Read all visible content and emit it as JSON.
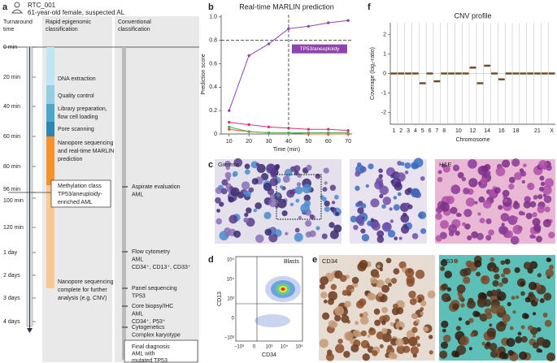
{
  "panel_a": {
    "label": "a",
    "patient_id": "RTC_001",
    "patient_info": "61-year-old female, suspected AL",
    "col_time": [
      "Turnaround",
      "time"
    ],
    "col_rapid": [
      "Rapid epigenomic",
      "classification"
    ],
    "col_conv": [
      "Conventional",
      "classification"
    ],
    "time_labels": [
      "0 min",
      "20 min",
      "40 min",
      "60 min",
      "80 min",
      "96 min",
      "100 min",
      "120 min",
      "1 day",
      "2 days",
      "3 days",
      "4 days"
    ],
    "rapid_steps": [
      [
        "DNA extraction"
      ],
      [
        "Quality control"
      ],
      [
        "Library preparation,",
        "flow cell loading"
      ],
      [
        "Pore scanning"
      ],
      [
        "Nanopore sequencing",
        "and real-time MARLIN",
        "prediction"
      ],
      [
        "Methylation class",
        "TP53/aneuploidy-",
        "enriched AML"
      ],
      [
        "Nanopore sequencing",
        "complete for further",
        "analysis (e.g. CNV)"
      ]
    ],
    "conventional_steps": [
      [
        "Aspirate evaluation",
        "AML"
      ],
      [
        "Flow cytometry",
        "AML",
        "CD34⁺, CD13⁺, CD33⁺"
      ],
      [
        "Panel sequencing",
        "TP53"
      ],
      [
        "Core biopsy/IHC",
        "AML",
        "CD34⁺, P53⁺"
      ],
      [
        "Cytogenetics",
        "Complex karyotype"
      ],
      [
        "Final diagnosis",
        "AML with",
        "mutated TP53"
      ]
    ]
  },
  "chart_data": [
    {
      "type": "line",
      "panel_label": "b",
      "title": "Real-time MARLIN prediction",
      "xlabel": "Time (min)",
      "ylabel": "Prediction score",
      "x": [
        10,
        20,
        30,
        40,
        50,
        60,
        70
      ],
      "series": [
        {
          "color": "#8e44ad",
          "values": [
            0.2,
            0.67,
            0.77,
            0.9,
            0.92,
            0.95,
            0.97
          ]
        },
        {
          "color": "#d6337a",
          "values": [
            0.1,
            0.08,
            0.06,
            0.05,
            0.04,
            0.04,
            0.03
          ]
        },
        {
          "color": "#4caf50",
          "values": [
            0.06,
            0.02,
            0.01,
            0.01,
            0.01,
            0.01,
            0.01
          ]
        },
        {
          "color": "#e05a2a",
          "values": [
            0.04,
            0.02,
            0.01,
            0.01,
            0,
            0,
            0
          ]
        }
      ],
      "xlim": [
        6,
        72
      ],
      "ylim": [
        0,
        1.02
      ],
      "xticks": [
        10,
        20,
        30,
        40,
        50,
        60,
        70
      ],
      "yticks": [
        0,
        0.2,
        0.4,
        0.6,
        0.8,
        {
          "value": 1,
          "label": "1.0"
        }
      ],
      "hline": 0.8,
      "vline": 40,
      "annotation": "TP53/aneuploidy"
    },
    {
      "type": "segments",
      "panel_label": "f",
      "title": "CNV profile",
      "xlabel": "Chromosome",
      "ylabel": "Coverage (log₂-ratio)",
      "categories": [
        "1",
        "2",
        "3",
        "4",
        "5",
        "6",
        "7",
        "8",
        null,
        "10",
        null,
        "12",
        null,
        "14",
        null,
        "16",
        null,
        "18",
        null,
        null,
        "21",
        null,
        "X"
      ],
      "values": [
        0,
        0,
        0,
        0,
        -0.5,
        0,
        -0.4,
        0,
        0,
        0,
        0,
        0.3,
        -0.5,
        0.4,
        0,
        -0.3,
        0,
        0,
        0,
        0,
        0,
        0,
        0
      ],
      "color": "#6b4b1e",
      "ylim": [
        -2.6,
        2.6
      ],
      "yticks": [
        -2,
        -1,
        0,
        1,
        2
      ]
    }
  ],
  "panel_c": {
    "label": "c",
    "stains": [
      "Giemsa",
      "H&E"
    ]
  },
  "panel_d": {
    "label": "d",
    "xlabel": "CD34",
    "ylabel": "CD13",
    "gate": "Blasts",
    "xtick_labels": [
      "−10³",
      "0",
      "10³",
      "10⁴",
      "10⁵"
    ],
    "ytick_labels": [
      "−10³",
      "0",
      "10³",
      "10⁴",
      "10⁵"
    ]
  },
  "panel_e": {
    "label": "e",
    "stains": [
      "CD34",
      "P53"
    ]
  }
}
